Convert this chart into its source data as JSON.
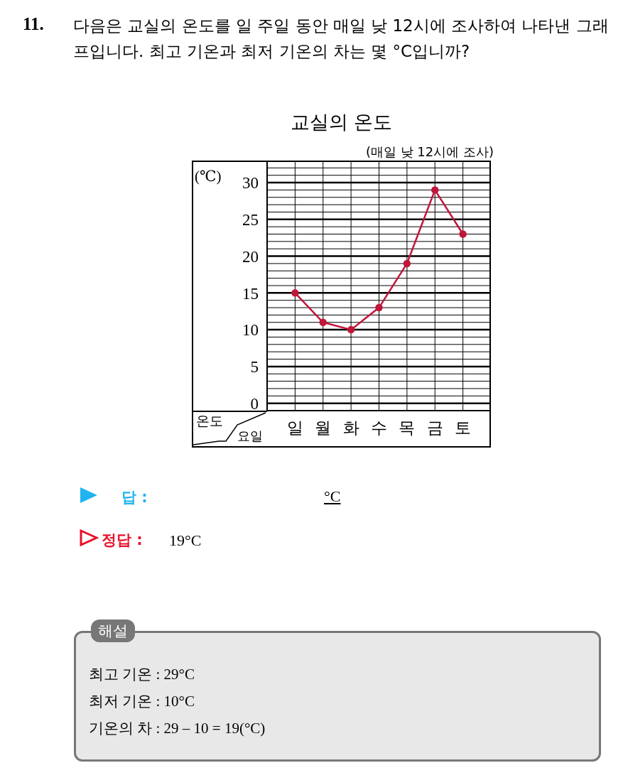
{
  "chart_data": {
    "type": "line",
    "title": "교실의 온도",
    "subtitle": "(매일 낮 12시에 조사)",
    "ylabel": "(℃)",
    "xlabel": "요일",
    "categories": [
      "일",
      "월",
      "화",
      "수",
      "목",
      "금",
      "토"
    ],
    "series": [
      {
        "color": "#c0163a",
        "values": [
          15,
          11,
          10,
          13,
          19,
          29,
          23
        ]
      }
    ],
    "ylim": [
      -1,
      33
    ],
    "yticks": [
      0,
      5,
      10,
      15,
      20,
      25,
      30
    ],
    "grid": true,
    "marker": "circle",
    "line_style": "solid",
    "annotations": [
      "11.",
      "다음은 교실의 온도를 일 주일 동안 매일 낮 12시에 조사하여 나타낸 그래프입니다. 최고 기온과 최저 기온의 차는 몇 °C입니까?",
      "답 :",
      "°C",
      "정답 :",
      "19°C",
      "해설",
      "최고 기온 : 29°C",
      "최저 기온 : 10°C",
      "기온의 차 : 29 – 10 = 19(°C)",
      "온도"
    ]
  }
}
